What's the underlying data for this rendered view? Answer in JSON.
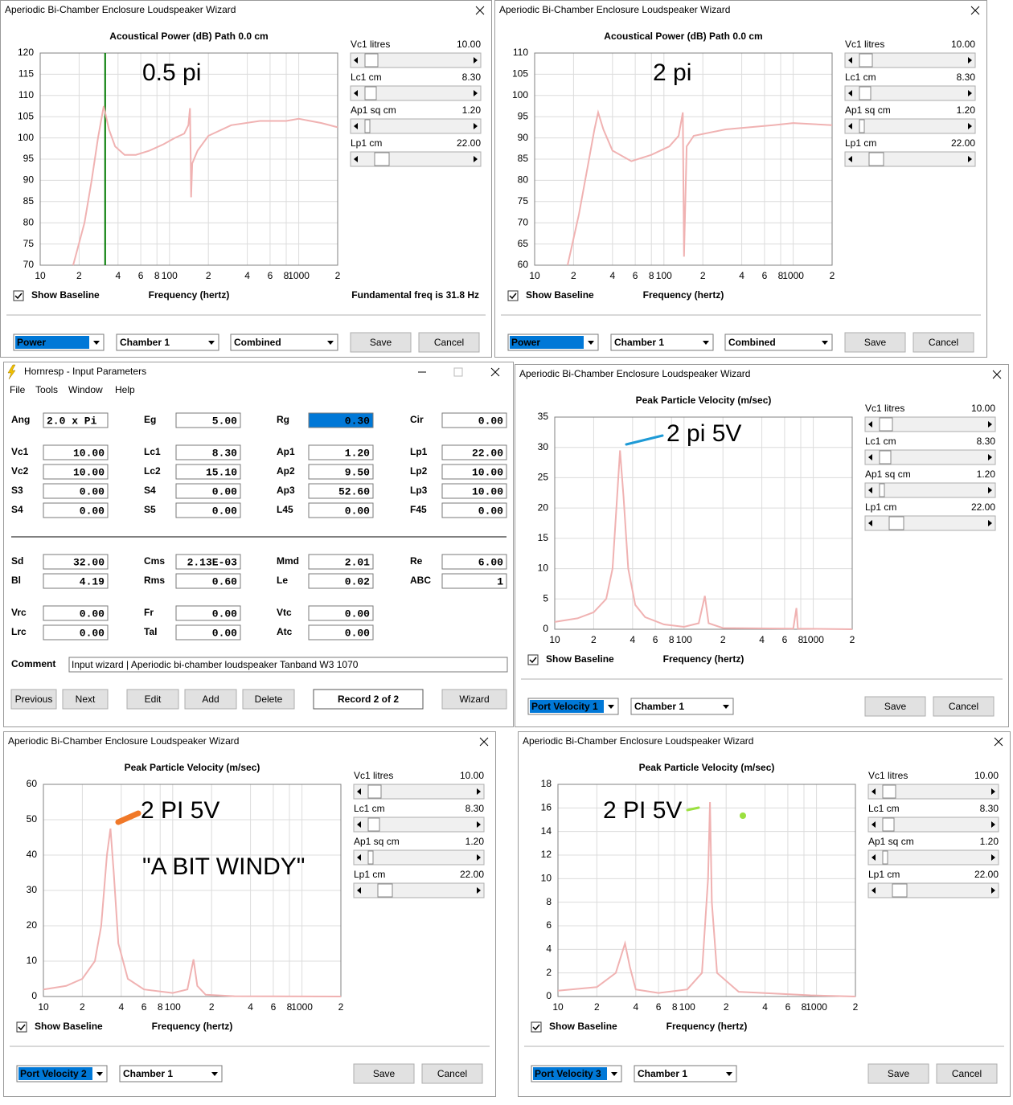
{
  "chart_data": [
    {
      "type": "line",
      "title": "Acoustical Power (dB)   Path 0.0 cm",
      "xlabel": "Frequency (hertz)",
      "xscale": "log",
      "xlim": [
        10,
        2000
      ],
      "xticks": [
        10,
        {
          "value": 20,
          "label": "2"
        },
        {
          "value": 40,
          "label": "4"
        },
        {
          "value": 60,
          "label": "6"
        },
        {
          "value": 80,
          "label": "8"
        },
        100,
        {
          "value": 200,
          "label": "2"
        },
        {
          "value": 400,
          "label": "4"
        },
        {
          "value": 600,
          "label": "6"
        },
        {
          "value": 800,
          "label": "8"
        },
        1000,
        {
          "value": 2000,
          "label": "2"
        }
      ],
      "ylim": [
        70,
        120
      ],
      "yticks": [
        70,
        75,
        80,
        85,
        90,
        95,
        100,
        105,
        110,
        115,
        120
      ],
      "grid": true,
      "color": "#f0b2b2",
      "x": [
        18,
        22,
        25,
        28,
        31,
        34,
        38,
        45,
        55,
        70,
        90,
        110,
        130,
        140,
        144,
        146,
        147,
        150,
        165,
        200,
        300,
        500,
        800,
        1000,
        1500,
        2000
      ],
      "values": [
        70,
        80,
        90,
        100,
        107.5,
        102,
        98,
        96,
        96,
        97,
        98.5,
        100,
        101,
        103,
        107,
        95,
        86,
        94,
        97,
        100.5,
        103,
        104,
        104,
        104.5,
        103.5,
        102.5
      ],
      "annotations": [
        "0.5 pi"
      ],
      "fundamental_marker": 31.8,
      "marker_color": "#007a00"
    },
    {
      "type": "line",
      "title": "Acoustical Power (dB)   Path 0.0 cm",
      "xlabel": "Frequency (hertz)",
      "xscale": "log",
      "xlim": [
        10,
        2000
      ],
      "xticks": [
        10,
        {
          "value": 20,
          "label": "2"
        },
        {
          "value": 40,
          "label": "4"
        },
        {
          "value": 60,
          "label": "6"
        },
        {
          "value": 80,
          "label": "8"
        },
        100,
        {
          "value": 200,
          "label": "2"
        },
        {
          "value": 400,
          "label": "4"
        },
        {
          "value": 600,
          "label": "6"
        },
        {
          "value": 800,
          "label": "8"
        },
        1000,
        {
          "value": 2000,
          "label": "2"
        }
      ],
      "ylim": [
        60,
        110
      ],
      "yticks": [
        60,
        65,
        70,
        75,
        80,
        85,
        90,
        95,
        100,
        105,
        110
      ],
      "grid": true,
      "color": "#f0b2b2",
      "x": [
        18,
        22,
        26,
        29,
        31,
        34,
        40,
        56,
        80,
        110,
        130,
        140,
        143,
        150,
        170,
        300,
        700,
        1000,
        2000
      ],
      "values": [
        60,
        72,
        84,
        92,
        96,
        92,
        87,
        84.5,
        86,
        88,
        90.5,
        96,
        62,
        88,
        90.5,
        92,
        93,
        93.5,
        93
      ],
      "annotations": [
        "2 pi"
      ]
    },
    {
      "type": "line",
      "title": "Peak Particle Velocity (m/sec)",
      "xlabel": "Frequency (hertz)",
      "xscale": "log",
      "xlim": [
        10,
        2000
      ],
      "xticks": [
        10,
        {
          "value": 20,
          "label": "2"
        },
        {
          "value": 40,
          "label": "4"
        },
        {
          "value": 60,
          "label": "6"
        },
        {
          "value": 80,
          "label": "8"
        },
        100,
        {
          "value": 200,
          "label": "2"
        },
        {
          "value": 400,
          "label": "4"
        },
        {
          "value": 600,
          "label": "6"
        },
        {
          "value": 800,
          "label": "8"
        },
        1000,
        {
          "value": 2000,
          "label": "2"
        }
      ],
      "ylim": [
        0,
        35
      ],
      "yticks": [
        0,
        5,
        10,
        15,
        20,
        25,
        30,
        35
      ],
      "grid": true,
      "color": "#f0b2b2",
      "x": [
        10,
        15,
        20,
        25,
        28,
        30,
        32,
        34,
        37,
        42,
        50,
        70,
        100,
        130,
        145,
        155,
        200,
        700,
        740,
        760,
        2000
      ],
      "values": [
        1.2,
        1.8,
        2.8,
        5,
        10,
        20,
        29.5,
        22,
        10,
        4,
        2,
        0.8,
        0.4,
        1,
        5.5,
        1,
        0.2,
        0.1,
        3.5,
        0.1,
        0
      ],
      "annotations": [
        "2 pi 5V"
      ]
    },
    {
      "type": "line",
      "title": "Peak Particle Velocity (m/sec)",
      "xlabel": "Frequency (hertz)",
      "xscale": "log",
      "xlim": [
        10,
        2000
      ],
      "xticks": [
        10,
        {
          "value": 20,
          "label": "2"
        },
        {
          "value": 40,
          "label": "4"
        },
        {
          "value": 60,
          "label": "6"
        },
        {
          "value": 80,
          "label": "8"
        },
        100,
        {
          "value": 200,
          "label": "2"
        },
        {
          "value": 400,
          "label": "4"
        },
        {
          "value": 600,
          "label": "6"
        },
        {
          "value": 800,
          "label": "8"
        },
        1000,
        {
          "value": 2000,
          "label": "2"
        }
      ],
      "ylim": [
        0,
        60
      ],
      "yticks": [
        0,
        10,
        20,
        30,
        40,
        50,
        60
      ],
      "grid": true,
      "color": "#f0b2b2",
      "x": [
        10,
        15,
        20,
        25,
        28,
        31,
        33,
        35,
        38,
        45,
        60,
        100,
        130,
        145,
        155,
        180,
        300,
        2000
      ],
      "values": [
        2,
        3,
        5,
        10,
        20,
        40,
        47.5,
        35,
        15,
        5,
        2,
        1,
        2,
        10.5,
        3,
        0.5,
        0.1,
        0
      ],
      "annotations": [
        "2 PI 5V",
        "\"A BIT WINDY\""
      ]
    },
    {
      "type": "line",
      "title": "Peak Particle Velocity (m/sec)",
      "xlabel": "Frequency (hertz)",
      "xscale": "log",
      "xlim": [
        10,
        2000
      ],
      "xticks": [
        10,
        {
          "value": 20,
          "label": "2"
        },
        {
          "value": 40,
          "label": "4"
        },
        {
          "value": 60,
          "label": "6"
        },
        {
          "value": 80,
          "label": "8"
        },
        100,
        {
          "value": 200,
          "label": "2"
        },
        {
          "value": 400,
          "label": "4"
        },
        {
          "value": 600,
          "label": "6"
        },
        {
          "value": 800,
          "label": "8"
        },
        1000,
        {
          "value": 2000,
          "label": "2"
        }
      ],
      "ylim": [
        0,
        18
      ],
      "yticks": [
        0,
        2,
        4,
        6,
        8,
        10,
        12,
        14,
        16,
        18
      ],
      "grid": true,
      "color": "#f0b2b2",
      "x": [
        10,
        20,
        28,
        33,
        36,
        40,
        60,
        100,
        130,
        145,
        150,
        155,
        170,
        250,
        900,
        2000
      ],
      "values": [
        0.5,
        0.8,
        2,
        4.5,
        2.5,
        0.6,
        0.3,
        0.6,
        2,
        10,
        16.5,
        8,
        2,
        0.4,
        0.1,
        0
      ],
      "annotations": [
        "2 PI 5V"
      ]
    }
  ],
  "windows": [
    {
      "title": "Aperiodic Bi-Chamber Enclosure Loudspeaker Wizard",
      "sliders": [
        {
          "label": "Vc1  litres",
          "value": "10.00"
        },
        {
          "label": "Lc1  cm",
          "value": "8.30"
        },
        {
          "label": "Ap1  sq cm",
          "value": "1.20"
        },
        {
          "label": "Lp1  cm",
          "value": "22.00"
        }
      ],
      "checkbox": "Show Baseline",
      "status": "Fundamental freq is 31.8 Hz",
      "dropdowns": [
        "Power",
        "Chamber 1",
        "Combined"
      ],
      "buttons": [
        "Save",
        "Cancel"
      ]
    },
    {
      "title": "Aperiodic Bi-Chamber Enclosure Loudspeaker Wizard",
      "sliders": [
        {
          "label": "Vc1  litres",
          "value": "10.00"
        },
        {
          "label": "Lc1  cm",
          "value": "8.30"
        },
        {
          "label": "Ap1  sq cm",
          "value": "1.20"
        },
        {
          "label": "Lp1  cm",
          "value": "22.00"
        }
      ],
      "checkbox": "Show Baseline",
      "dropdowns": [
        "Power",
        "Chamber 1",
        "Combined"
      ],
      "buttons": [
        "Save",
        "Cancel"
      ]
    },
    {
      "title": "Aperiodic Bi-Chamber Enclosure Loudspeaker Wizard",
      "sliders": [
        {
          "label": "Vc1  litres",
          "value": "10.00"
        },
        {
          "label": "Lc1  cm",
          "value": "8.30"
        },
        {
          "label": "Ap1  sq cm",
          "value": "1.20"
        },
        {
          "label": "Lp1  cm",
          "value": "22.00"
        }
      ],
      "checkbox": "Show Baseline",
      "dropdowns": [
        "Port Velocity 1",
        "Chamber 1"
      ],
      "buttons": [
        "Save",
        "Cancel"
      ]
    },
    {
      "title": "Aperiodic Bi-Chamber Enclosure Loudspeaker Wizard",
      "sliders": [
        {
          "label": "Vc1  litres",
          "value": "10.00"
        },
        {
          "label": "Lc1  cm",
          "value": "8.30"
        },
        {
          "label": "Ap1  sq cm",
          "value": "1.20"
        },
        {
          "label": "Lp1  cm",
          "value": "22.00"
        }
      ],
      "checkbox": "Show Baseline",
      "dropdowns": [
        "Port Velocity 2",
        "Chamber 1"
      ],
      "buttons": [
        "Save",
        "Cancel"
      ]
    },
    {
      "title": "Aperiodic Bi-Chamber Enclosure Loudspeaker Wizard",
      "sliders": [
        {
          "label": "Vc1  litres",
          "value": "10.00"
        },
        {
          "label": "Lc1  cm",
          "value": "8.30"
        },
        {
          "label": "Ap1  sq cm",
          "value": "1.20"
        },
        {
          "label": "Lp1  cm",
          "value": "22.00"
        }
      ],
      "checkbox": "Show Baseline",
      "dropdowns": [
        "Port Velocity 3",
        "Chamber 1"
      ],
      "buttons": [
        "Save",
        "Cancel"
      ]
    }
  ],
  "input_params": {
    "title": "Hornresp - Input Parameters",
    "menu": [
      "File",
      "Tools",
      "Window",
      "Help"
    ],
    "rows": [
      [
        {
          "label": "Ang",
          "value": "2.0 x Pi"
        },
        {
          "label": "Eg",
          "value": "5.00"
        },
        {
          "label": "Rg",
          "value": "0.30",
          "highlighted": true
        },
        {
          "label": "Cir",
          "value": "0.00"
        }
      ],
      [
        {
          "label": "Vc1",
          "value": "10.00"
        },
        {
          "label": "Lc1",
          "value": "8.30"
        },
        {
          "label": "Ap1",
          "value": "1.20"
        },
        {
          "label": "Lp1",
          "value": "22.00"
        }
      ],
      [
        {
          "label": "Vc2",
          "value": "10.00"
        },
        {
          "label": "Lc2",
          "value": "15.10"
        },
        {
          "label": "Ap2",
          "value": "9.50"
        },
        {
          "label": "Lp2",
          "value": "10.00"
        }
      ],
      [
        {
          "label": "S3",
          "value": "0.00"
        },
        {
          "label": "S4",
          "value": "0.00"
        },
        {
          "label": "Ap3",
          "value": "52.60"
        },
        {
          "label": "Lp3",
          "value": "10.00"
        }
      ],
      [
        {
          "label": "S4",
          "value": "0.00"
        },
        {
          "label": "S5",
          "value": "0.00"
        },
        {
          "label": "L45",
          "value": "0.00"
        },
        {
          "label": "F45",
          "value": "0.00"
        }
      ],
      [
        {
          "label": "Sd",
          "value": "32.00"
        },
        {
          "label": "Cms",
          "value": "2.13E-03"
        },
        {
          "label": "Mmd",
          "value": "2.01"
        },
        {
          "label": "Re",
          "value": "6.00"
        }
      ],
      [
        {
          "label": "Bl",
          "value": "4.19"
        },
        {
          "label": "Rms",
          "value": "0.60"
        },
        {
          "label": "Le",
          "value": "0.02"
        },
        {
          "label": "ABC",
          "value": "1",
          "label_color": "#c00000"
        }
      ],
      [
        {
          "label": "Vrc",
          "value": "0.00"
        },
        {
          "label": "Fr",
          "value": "0.00"
        },
        {
          "label": "Vtc",
          "value": "0.00"
        }
      ],
      [
        {
          "label": "Lrc",
          "value": "0.00"
        },
        {
          "label": "Tal",
          "value": "0.00"
        },
        {
          "label": "Atc",
          "value": "0.00"
        }
      ]
    ],
    "comment": {
      "label": "Comment",
      "value": "Input wizard | Aperiodic bi-chamber loudspeaker  Tanband W3 1070"
    },
    "buttons": [
      "Previous",
      "Next",
      "Edit",
      "Add",
      "Delete"
    ],
    "record": "Record 2 of 2",
    "wizard_button": "Wizard"
  }
}
